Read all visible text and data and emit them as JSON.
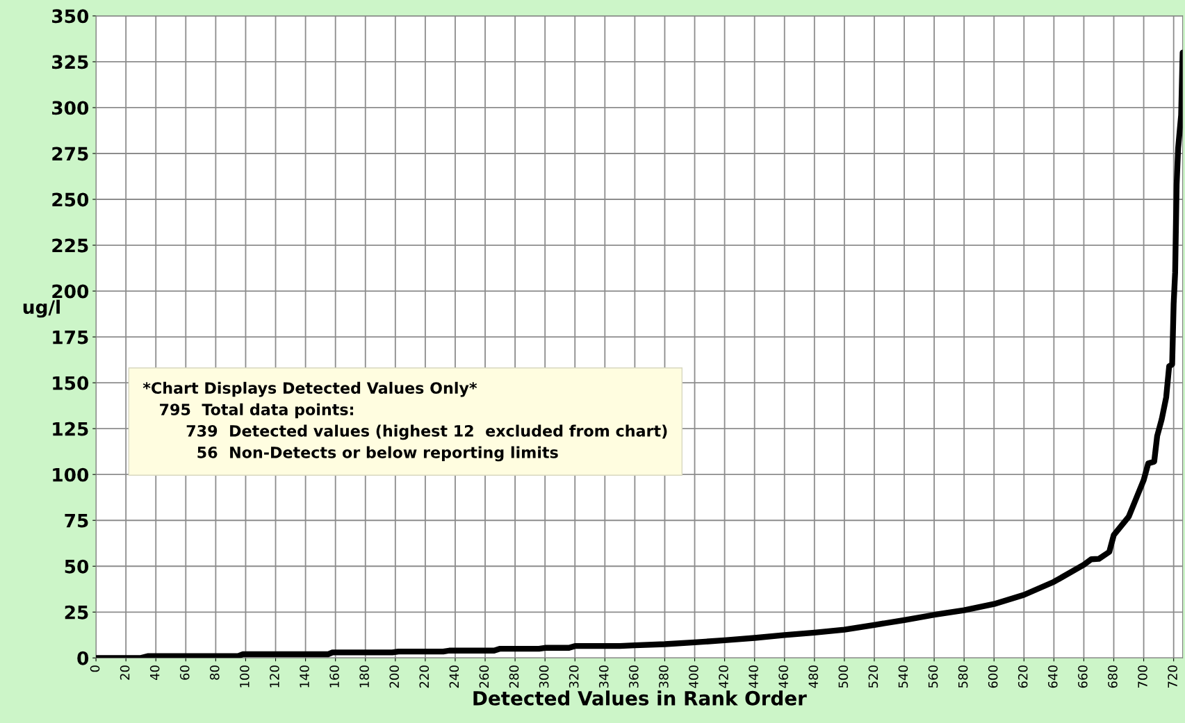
{
  "chart_data": {
    "type": "line",
    "xlabel": "Detected Values in Rank Order",
    "ylabel": "ug/l",
    "series": [
      {
        "color": "#000000",
        "x": [
          0,
          30,
          35,
          95,
          98,
          155,
          158,
          198,
          202,
          232,
          236,
          266,
          270,
          296,
          300,
          316,
          320,
          350,
          360,
          380,
          400,
          420,
          440,
          460,
          480,
          500,
          520,
          540,
          560,
          580,
          600,
          620,
          640,
          660,
          665,
          670,
          677,
          680,
          690,
          695,
          700,
          703,
          707,
          709,
          712,
          715,
          717,
          719,
          720,
          721,
          722,
          723,
          725,
          726
        ],
        "values": [
          0,
          0,
          1,
          1,
          2,
          2,
          3,
          3,
          3.5,
          3.5,
          4,
          4,
          5,
          5,
          5.5,
          5.5,
          6.5,
          6.5,
          6.9,
          7.5,
          8.5,
          9.6,
          10.9,
          12.5,
          13.8,
          15.4,
          18,
          20.6,
          23.5,
          26,
          29.4,
          34.4,
          41.5,
          50.8,
          53.8,
          54,
          57.8,
          67,
          77,
          87,
          97,
          106,
          107,
          121,
          130,
          142,
          159,
          160,
          193,
          210,
          258,
          278,
          296,
          330
        ]
      }
    ],
    "xlim": [
      0,
      726
    ],
    "xticks": [
      0,
      20,
      40,
      60,
      80,
      100,
      120,
      140,
      160,
      180,
      200,
      220,
      240,
      260,
      280,
      300,
      320,
      340,
      360,
      380,
      400,
      420,
      440,
      460,
      480,
      500,
      520,
      540,
      560,
      580,
      600,
      620,
      640,
      660,
      680,
      700,
      720
    ],
    "ylim": [
      0,
      350
    ],
    "yticks": [
      0,
      25,
      50,
      75,
      100,
      125,
      150,
      175,
      200,
      225,
      250,
      275,
      300,
      325,
      350
    ],
    "grid": true,
    "legend": false,
    "marker": "none",
    "line_style": "solid",
    "annotations": [
      "*Chart Displays Detected Values Only*\n   795  Total data points:\n        739  Detected values (highest 12  excluded from chart)\n          56  Non-Detects or below reporting limits"
    ]
  }
}
